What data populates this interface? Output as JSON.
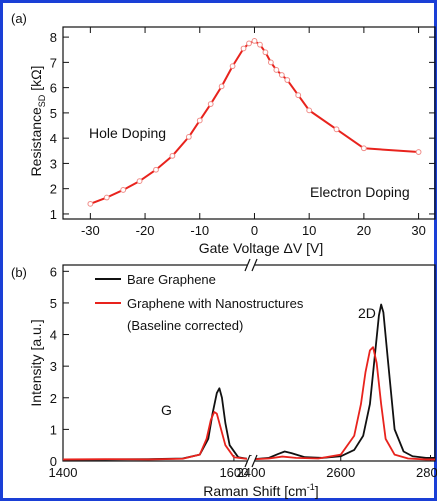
{
  "chart_data": [
    {
      "type": "line",
      "panel_label": "(a)",
      "title": "",
      "xlabel": "Gate Voltage ΔV [V]",
      "ylabel": "Resistance",
      "ylabel_sub": "SD",
      "ylabel_unit": " [kΩ]",
      "xlim": [
        -35,
        33
      ],
      "ylim": [
        0.8,
        8.4
      ],
      "xticks": [
        -30,
        -20,
        -10,
        0,
        10,
        20,
        30
      ],
      "yticks": [
        1,
        2,
        3,
        4,
        5,
        6,
        7,
        8
      ],
      "annotations": [
        "Hole Doping",
        "Electron Doping"
      ],
      "series": [
        {
          "color": "#e8231d",
          "x": [
            -30,
            -27,
            -24,
            -21,
            -18,
            -15,
            -12,
            -10,
            -8,
            -6,
            -4,
            -2,
            -1,
            0,
            1,
            2,
            3,
            4,
            5,
            6,
            8,
            10,
            15,
            20,
            30
          ],
          "y": [
            1.4,
            1.65,
            1.95,
            2.3,
            2.75,
            3.3,
            4.05,
            4.7,
            5.35,
            6.05,
            6.85,
            7.55,
            7.75,
            7.85,
            7.7,
            7.4,
            7.0,
            6.7,
            6.5,
            6.3,
            5.7,
            5.1,
            4.35,
            3.6,
            3.45
          ]
        }
      ]
    },
    {
      "type": "line",
      "panel_label": "(b)",
      "title": "",
      "xlabel": "Raman Shift [cm",
      "xlabel_sup": "-1",
      "xlabel_end": "]",
      "ylabel": "Intensity [a.u.]",
      "axis_break": [
        1620,
        2400
      ],
      "xlim_left": [
        1400,
        1620
      ],
      "xlim_right": [
        2400,
        2810
      ],
      "ylim": [
        0,
        6.2
      ],
      "xticks": [
        1400,
        1600,
        2400,
        2600,
        2800
      ],
      "yticks": [
        0,
        1,
        2,
        3,
        4,
        5,
        6
      ],
      "peak_labels": [
        "G",
        "2D"
      ],
      "legend_position": "top-left",
      "series": [
        {
          "name": "Bare Graphene",
          "color": "#111111",
          "x": [
            1400,
            1450,
            1500,
            1540,
            1560,
            1570,
            1575,
            1580,
            1583,
            1586,
            1590,
            1595,
            1605,
            1620,
            2400,
            2440,
            2460,
            2475,
            2490,
            2520,
            2560,
            2600,
            2630,
            2650,
            2665,
            2675,
            2685,
            2690,
            2695,
            2705,
            2720,
            2740,
            2760,
            2790,
            2810
          ],
          "y": [
            0.05,
            0.05,
            0.06,
            0.08,
            0.2,
            0.7,
            1.5,
            2.15,
            2.3,
            2.0,
            1.2,
            0.5,
            0.12,
            0.05,
            0.05,
            0.1,
            0.22,
            0.3,
            0.25,
            0.12,
            0.1,
            0.15,
            0.35,
            0.8,
            1.8,
            3.2,
            4.6,
            4.95,
            4.7,
            3.2,
            1.0,
            0.3,
            0.15,
            0.1,
            0.1
          ]
        },
        {
          "name": "Graphene with Nanostructures",
          "color": "#e8231d",
          "x": [
            1400,
            1450,
            1500,
            1540,
            1560,
            1568,
            1573,
            1577,
            1580,
            1584,
            1590,
            1600,
            1620,
            2400,
            2440,
            2470,
            2500,
            2550,
            2600,
            2630,
            2645,
            2655,
            2665,
            2672,
            2680,
            2690,
            2700,
            2720,
            2750,
            2790,
            2810
          ],
          "y": [
            0.05,
            0.06,
            0.05,
            0.07,
            0.2,
            0.7,
            1.3,
            1.55,
            1.5,
            1.1,
            0.5,
            0.12,
            0.05,
            0.05,
            0.08,
            0.14,
            0.1,
            0.08,
            0.2,
            0.8,
            1.8,
            2.8,
            3.5,
            3.6,
            3.1,
            1.8,
            0.7,
            0.2,
            0.08,
            0.05,
            0.05
          ]
        }
      ],
      "legend_note": "(Baseline corrected)"
    }
  ]
}
